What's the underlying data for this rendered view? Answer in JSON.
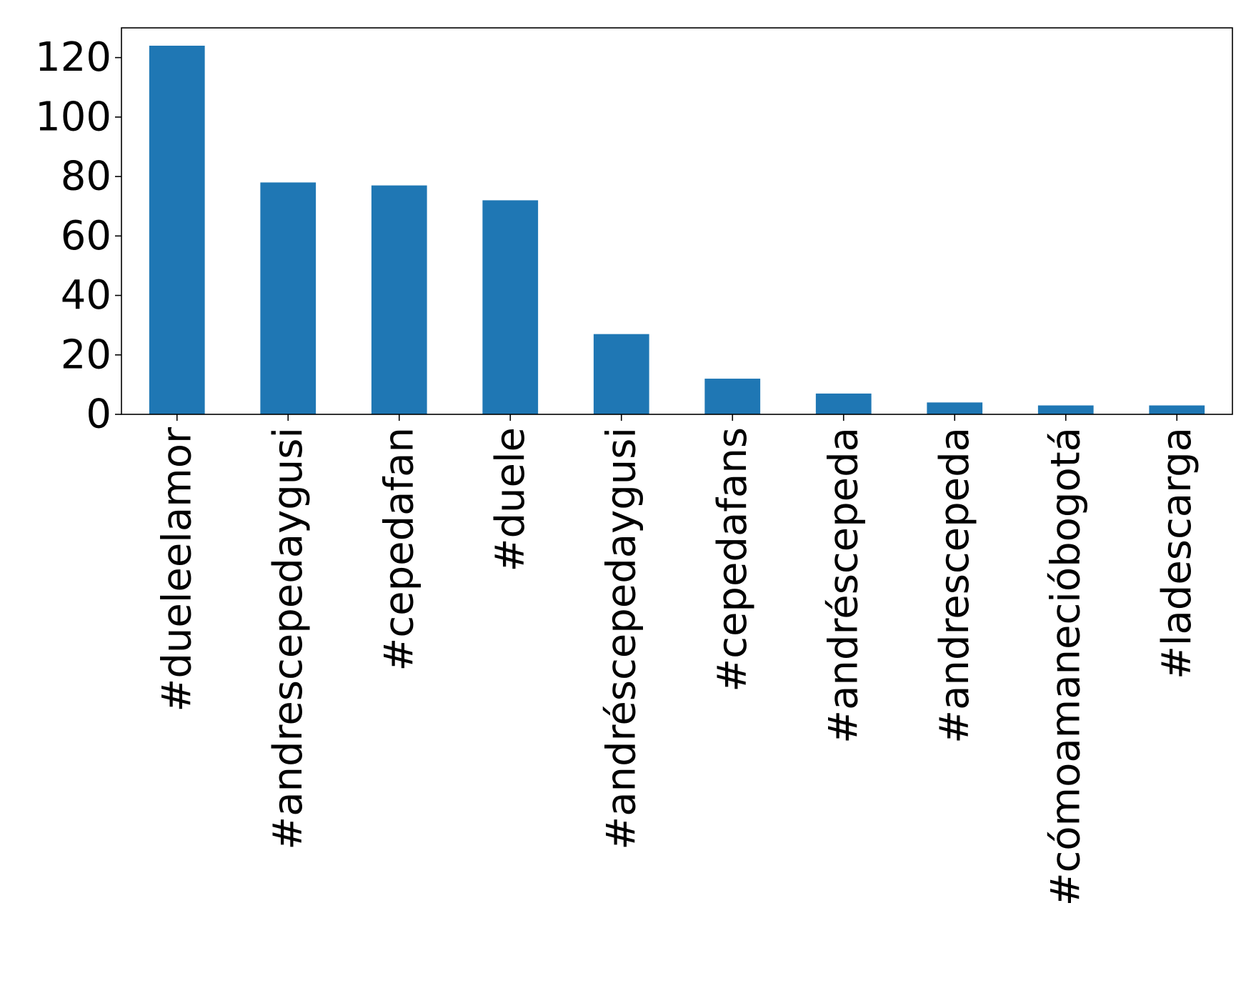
{
  "chart_data": {
    "type": "bar",
    "categories": [
      "#dueleelamor",
      "#andrescepedaygusi",
      "#cepedafan",
      "#duele",
      "#andréscepedaygusi",
      "#cepedafans",
      "#andréscepeda",
      "#andrescepeda",
      "#cómoamanecióbogotá",
      "#ladescarga"
    ],
    "values": [
      124,
      78,
      77,
      72,
      27,
      12,
      7,
      4,
      3,
      3
    ],
    "title": "",
    "xlabel": "",
    "ylabel": "",
    "ylim": [
      0,
      130
    ],
    "yticks": [
      0,
      20,
      40,
      60,
      80,
      100,
      120
    ],
    "grid": false,
    "legend": "none",
    "bar_color": "#1f77b4"
  }
}
